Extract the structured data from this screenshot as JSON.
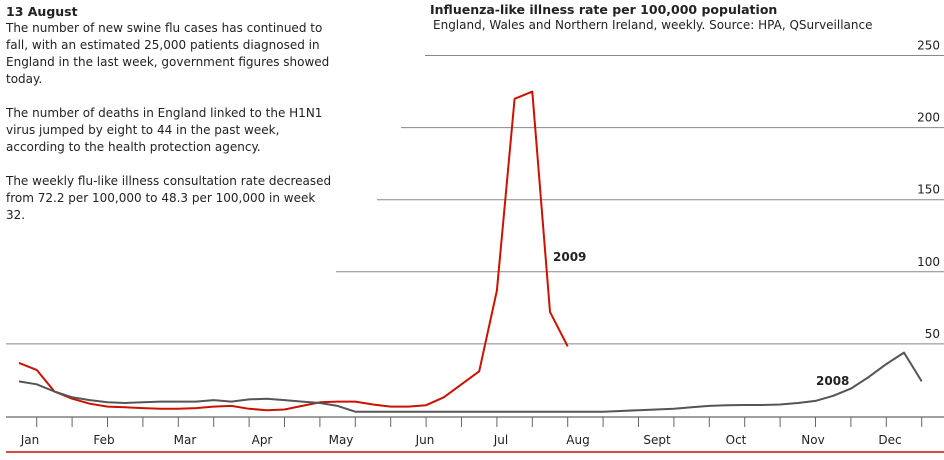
{
  "story": {
    "date": "13 August",
    "paragraphs": [
      "The number of new swine flu cases has continued to fall, with an estimated 25,000 patients diagnosed in England in the last week, government figures showed today.",
      "The number of deaths in England linked to the H1N1 virus jumped by eight to 44 in the past week, according to the health protection agency.",
      "The weekly flu-like illness consultation rate decreased from 72.2 per 100,000 to 48.3 per 100,000 in week 32."
    ]
  },
  "chart_data": {
    "type": "line",
    "title": "Influenza-like illness rate per 100,000 population",
    "subtitle": "England, Wales and Northern Ireland, weekly. Source: HPA, QSurveillance",
    "xlabel": "",
    "ylabel": "",
    "x_unit": "week",
    "xlim": [
      1,
      52
    ],
    "ylim": [
      0,
      250
    ],
    "yticks": [
      50,
      100,
      150,
      200,
      250
    ],
    "month_labels": [
      "Jan",
      "Feb",
      "Mar",
      "Apr",
      "May",
      "Jun",
      "Jul",
      "Aug",
      "Sept",
      "Oct",
      "Nov",
      "Dec"
    ],
    "grid": true,
    "series": [
      {
        "name": "2009",
        "color": "#cc1100",
        "x": [
          1,
          2,
          3,
          4,
          5,
          6,
          7,
          8,
          9,
          10,
          11,
          12,
          13,
          14,
          15,
          16,
          17,
          18,
          19,
          20,
          21,
          22,
          23,
          24,
          25,
          26,
          27,
          28,
          29,
          30,
          31,
          32
        ],
        "values": [
          36.8,
          32,
          17,
          12,
          8.5,
          6.5,
          6,
          5.5,
          5,
          5,
          5.5,
          6.5,
          7,
          5,
          4,
          4.5,
          7,
          9.5,
          10,
          10,
          8,
          6.5,
          6.5,
          7.5,
          13,
          22,
          31,
          87,
          220,
          225,
          72.2,
          48.3
        ]
      },
      {
        "name": "2008",
        "color": "#555555",
        "x": [
          1,
          2,
          3,
          4,
          5,
          6,
          7,
          8,
          9,
          10,
          11,
          12,
          13,
          14,
          15,
          16,
          17,
          18,
          19,
          20,
          21,
          22,
          23,
          24,
          25,
          26,
          27,
          28,
          29,
          30,
          31,
          32,
          33,
          34,
          35,
          36,
          37,
          38,
          39,
          40,
          41,
          42,
          43,
          44,
          45,
          46,
          47,
          48,
          49,
          50,
          51,
          52
        ],
        "values": [
          24,
          22,
          17,
          13,
          11,
          9.5,
          9,
          9.5,
          10,
          10,
          10,
          11,
          10,
          11.5,
          12,
          11,
          10,
          9,
          7,
          3,
          3,
          3,
          3,
          3,
          3,
          3,
          3,
          3,
          3,
          3,
          3,
          3,
          3,
          3,
          3.5,
          4,
          4.5,
          5,
          6,
          7,
          7.5,
          7.6,
          7.6,
          8,
          9,
          10.5,
          14,
          19,
          27,
          36,
          44,
          24
        ]
      }
    ]
  }
}
